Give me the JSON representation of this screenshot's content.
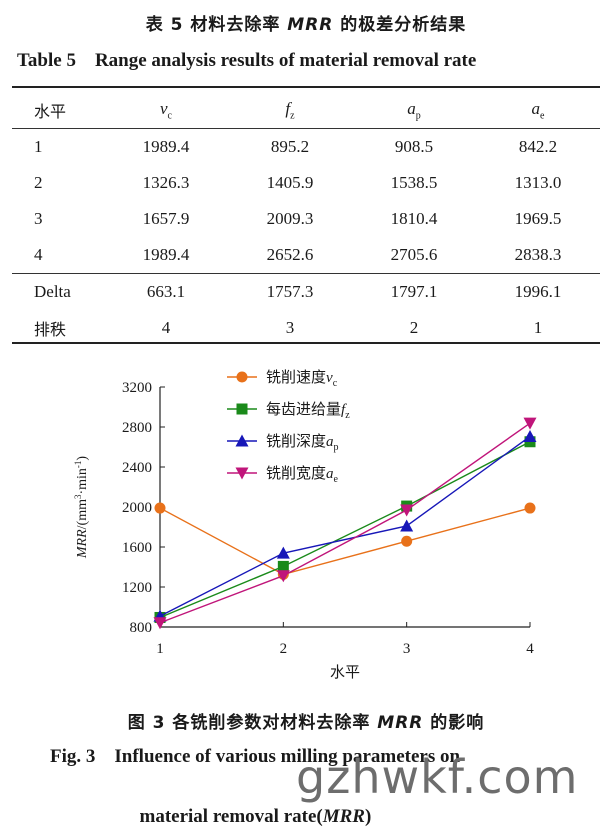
{
  "table": {
    "caption_cn_prefix": "表 5  材料去除率 ",
    "caption_cn_em": "MRR",
    "caption_cn_suffix": " 的极差分析结果",
    "caption_en": "Table 5    Range analysis results of material removal rate",
    "header": {
      "level": "水平",
      "c1": "v",
      "c1_sub": "c",
      "c2": "f",
      "c2_sub": "z",
      "c3": "a",
      "c3_sub": "p",
      "c4": "a",
      "c4_sub": "e"
    },
    "rows": [
      {
        "level": "1",
        "vc": "1989.4",
        "fz": "895.2",
        "ap": "908.5",
        "ae": "842.2"
      },
      {
        "level": "2",
        "vc": "1326.3",
        "fz": "1405.9",
        "ap": "1538.5",
        "ae": "1313.0"
      },
      {
        "level": "3",
        "vc": "1657.9",
        "fz": "2009.3",
        "ap": "1810.4",
        "ae": "1969.5"
      },
      {
        "level": "4",
        "vc": "1989.4",
        "fz": "2652.6",
        "ap": "2705.6",
        "ae": "2838.3"
      }
    ],
    "delta": {
      "label": "Delta",
      "vc": "663.1",
      "fz": "1757.3",
      "ap": "1797.1",
      "ae": "1996.1"
    },
    "rank": {
      "label": "排秩",
      "vc": "4",
      "fz": "3",
      "ap": "2",
      "ae": "1"
    }
  },
  "chart_data": {
    "type": "line",
    "title": "",
    "xlabel": "水平",
    "ylabel_italic": "MRR",
    "ylabel_rest": "/(mm",
    "ylabel_sup1": "3",
    "ylabel_mid": "·min",
    "ylabel_sup2": "-1",
    "ylabel_end": ")",
    "x": [
      1,
      2,
      3,
      4
    ],
    "xticks": [
      "1",
      "2",
      "3",
      "4"
    ],
    "xlim": [
      1,
      4
    ],
    "ylim": [
      800,
      3200
    ],
    "yticks": [
      "800",
      "1200",
      "1600",
      "2000",
      "2400",
      "2800",
      "3200"
    ],
    "legend_position": "top-center",
    "series": [
      {
        "name": "铣削速度",
        "sym": "v",
        "sub": "c",
        "marker": "circle",
        "color": "#e8711a",
        "values": [
          1989.4,
          1326.3,
          1657.9,
          1989.4
        ]
      },
      {
        "name": "每齿进给量",
        "sym": "f",
        "sub": "z",
        "marker": "square",
        "color": "#1a8a1a",
        "values": [
          895.2,
          1405.9,
          2009.3,
          2652.6
        ]
      },
      {
        "name": "铣削深度",
        "sym": "a",
        "sub": "p",
        "marker": "triangle-up",
        "color": "#1717b8",
        "values": [
          908.5,
          1538.5,
          1810.4,
          2705.6
        ]
      },
      {
        "name": "铣削宽度",
        "sym": "a",
        "sub": "e",
        "marker": "triangle-down",
        "color": "#c0157a",
        "values": [
          842.2,
          1313.0,
          1969.5,
          2838.3
        ]
      }
    ]
  },
  "figure": {
    "caption_cn_prefix": "图 3   各铣削参数对材料去除率 ",
    "caption_cn_em": "MRR",
    "caption_cn_suffix": " 的影响",
    "caption_en_line1": "Fig. 3    Influence of various milling parameters on",
    "caption_en_line2_prefix": "material removal rate(",
    "caption_en_line2_em": "MRR",
    "caption_en_line2_suffix": ")"
  },
  "watermark": "gzhwkf.com"
}
